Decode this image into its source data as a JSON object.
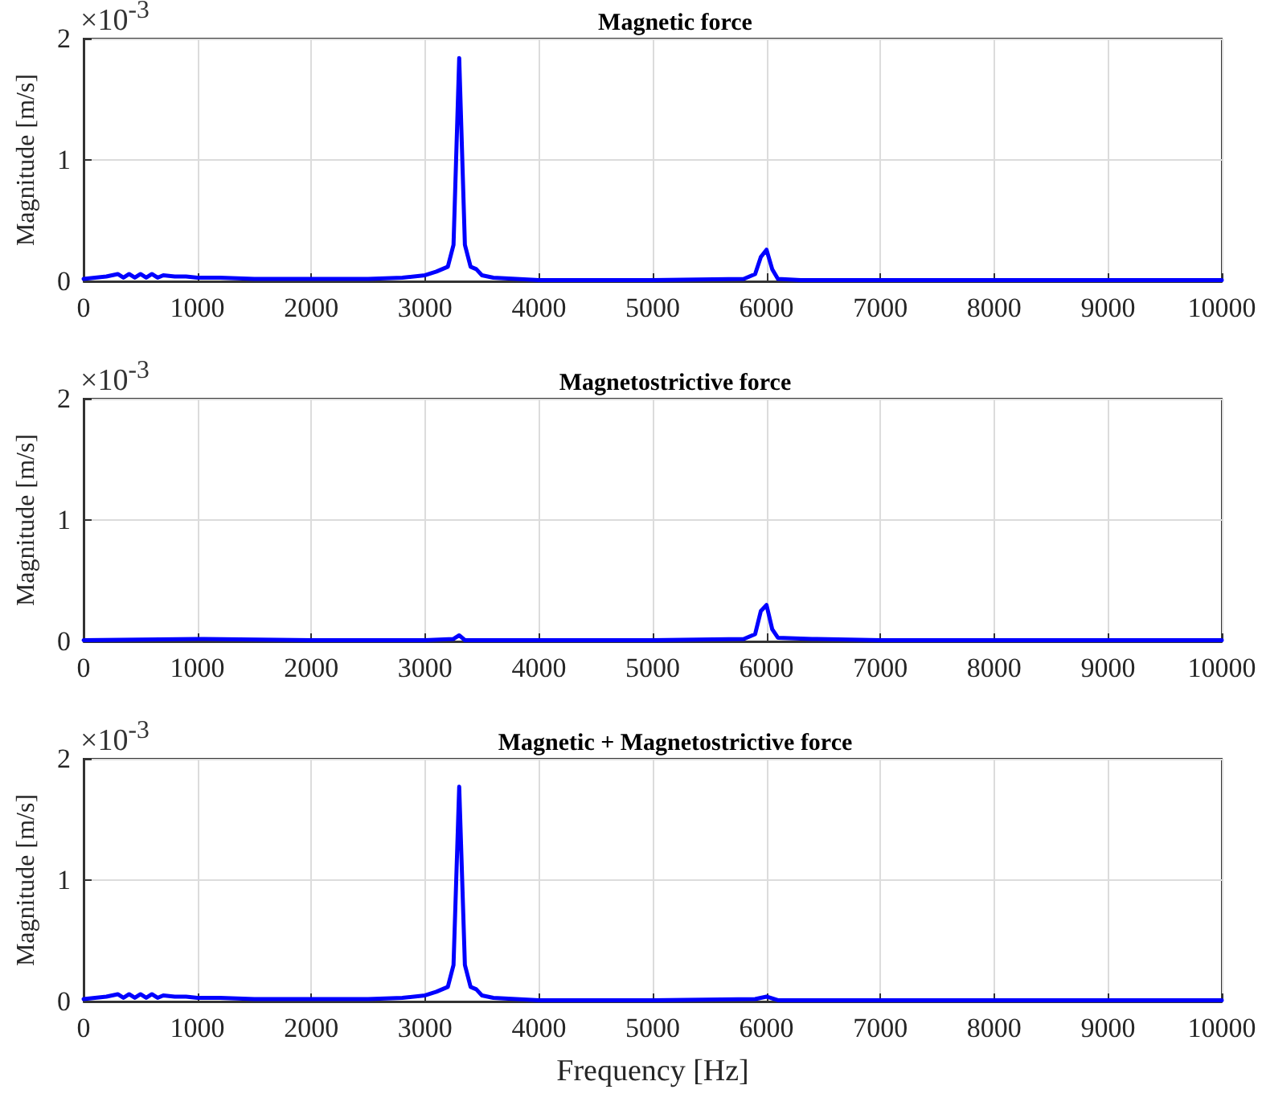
{
  "chart_data": [
    {
      "type": "line",
      "title": "Magnetic force",
      "ylabel": "Magnitude [m/s]",
      "annotations": [
        "×10$^{-3}$"
      ],
      "xlim": [
        0,
        10000
      ],
      "xticks": [
        0,
        1000,
        2000,
        3000,
        4000,
        5000,
        6000,
        7000,
        8000,
        9000,
        10000
      ],
      "ylim": [
        0,
        2
      ],
      "yticks": [
        0,
        1,
        2
      ],
      "grid": true,
      "marker": "none",
      "line_style": "solid",
      "series": [
        {
          "color": "#0000ff",
          "x": [
            0,
            100,
            200,
            300,
            350,
            400,
            450,
            500,
            550,
            600,
            650,
            700,
            800,
            900,
            1000,
            1200,
            1500,
            2000,
            2500,
            2800,
            3000,
            3100,
            3200,
            3250,
            3300,
            3350,
            3400,
            3450,
            3500,
            3600,
            3800,
            4000,
            5000,
            5800,
            5900,
            5950,
            6000,
            6050,
            6100,
            6300,
            7000,
            8000,
            9000,
            10000
          ],
          "values": [
            0.02,
            0.03,
            0.04,
            0.06,
            0.03,
            0.06,
            0.03,
            0.06,
            0.03,
            0.06,
            0.03,
            0.05,
            0.04,
            0.04,
            0.03,
            0.03,
            0.02,
            0.02,
            0.02,
            0.03,
            0.05,
            0.08,
            0.12,
            0.3,
            1.84,
            0.3,
            0.12,
            0.1,
            0.05,
            0.03,
            0.02,
            0.01,
            0.01,
            0.02,
            0.06,
            0.2,
            0.26,
            0.1,
            0.02,
            0.01,
            0.01,
            0.01,
            0.01,
            0.01
          ]
        }
      ]
    },
    {
      "type": "line",
      "title": "Magnetostrictive force",
      "ylabel": "Magnitude [m/s]",
      "annotations": [
        "×10$^{-3}$"
      ],
      "xlim": [
        0,
        10000
      ],
      "xticks": [
        0,
        1000,
        2000,
        3000,
        4000,
        5000,
        6000,
        7000,
        8000,
        9000,
        10000
      ],
      "ylim": [
        0,
        2
      ],
      "yticks": [
        0,
        1,
        2
      ],
      "grid": true,
      "marker": "none",
      "line_style": "solid",
      "series": [
        {
          "color": "#0000ff",
          "x": [
            0,
            1000,
            2000,
            3000,
            3250,
            3300,
            3350,
            4000,
            5000,
            5800,
            5900,
            5950,
            6000,
            6050,
            6100,
            6400,
            7000,
            8000,
            10000
          ],
          "values": [
            0.01,
            0.02,
            0.01,
            0.01,
            0.02,
            0.05,
            0.01,
            0.01,
            0.01,
            0.02,
            0.06,
            0.25,
            0.3,
            0.1,
            0.03,
            0.02,
            0.01,
            0.01,
            0.01
          ]
        }
      ]
    },
    {
      "type": "line",
      "title": "Magnetic + Magnetostrictive force",
      "xlabel": "Frequency [Hz]",
      "ylabel": "Magnitude [m/s]",
      "annotations": [
        "×10$^{-3}$"
      ],
      "xlim": [
        0,
        10000
      ],
      "xticks": [
        0,
        1000,
        2000,
        3000,
        4000,
        5000,
        6000,
        7000,
        8000,
        9000,
        10000
      ],
      "ylim": [
        0,
        2
      ],
      "yticks": [
        0,
        1,
        2
      ],
      "grid": true,
      "marker": "none",
      "line_style": "solid",
      "series": [
        {
          "color": "#0000ff",
          "x": [
            0,
            100,
            200,
            300,
            350,
            400,
            450,
            500,
            550,
            600,
            650,
            700,
            800,
            900,
            1000,
            1200,
            1500,
            2000,
            2500,
            2800,
            3000,
            3100,
            3200,
            3250,
            3300,
            3350,
            3400,
            3450,
            3500,
            3600,
            3800,
            4000,
            5000,
            5900,
            6000,
            6100,
            7000,
            8000,
            9000,
            10000
          ],
          "values": [
            0.02,
            0.03,
            0.04,
            0.06,
            0.03,
            0.06,
            0.03,
            0.06,
            0.03,
            0.06,
            0.03,
            0.05,
            0.04,
            0.04,
            0.03,
            0.03,
            0.02,
            0.02,
            0.02,
            0.03,
            0.05,
            0.08,
            0.12,
            0.3,
            1.77,
            0.3,
            0.12,
            0.1,
            0.05,
            0.03,
            0.02,
            0.01,
            0.01,
            0.02,
            0.04,
            0.01,
            0.01,
            0.01,
            0.01,
            0.01
          ]
        }
      ]
    }
  ]
}
